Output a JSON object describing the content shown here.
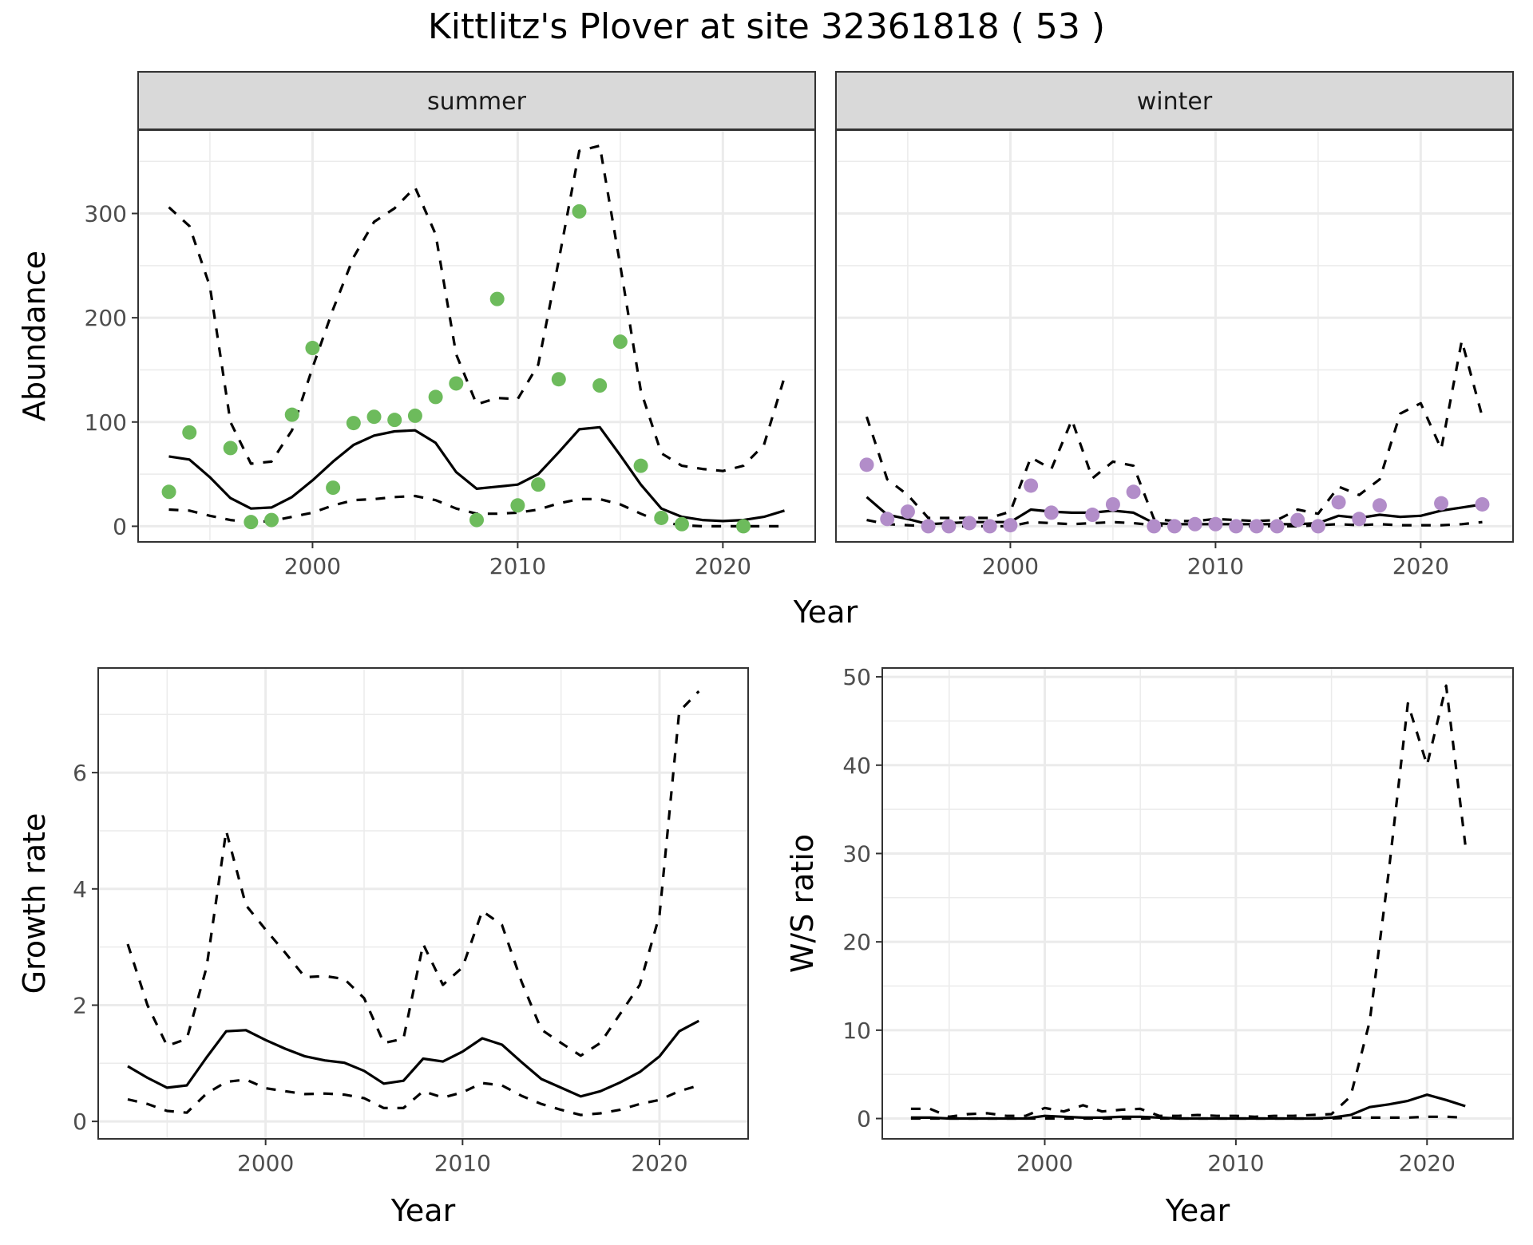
{
  "title": "Kittlitz's Plover at site 32361818 ( 53 )",
  "colors": {
    "summer_points": "#6dbb5c",
    "winter_points": "#b28dc9",
    "lines": "#000000",
    "strip_bg": "#d9d9d9",
    "grid": "#ebebeb"
  },
  "chart_data": [
    {
      "type": "scatter",
      "panel": "abundance",
      "facets": [
        "summer",
        "winter"
      ],
      "xlabel": "Year",
      "ylabel": "Abundance",
      "xlim": [
        1991.5,
        2024.5
      ],
      "ylim": [
        -15,
        380
      ],
      "xticks": [
        2000,
        2010,
        2020
      ],
      "yticks": [
        0,
        100,
        200,
        300
      ],
      "grid": true,
      "summer": {
        "points": {
          "x": [
            1993,
            1994,
            1996,
            1997,
            1998,
            1999,
            2000,
            2001,
            2002,
            2003,
            2004,
            2005,
            2006,
            2007,
            2008,
            2009,
            2010,
            2011,
            2012,
            2013,
            2014,
            2015,
            2016,
            2017,
            2018,
            2021
          ],
          "y": [
            33,
            90,
            75,
            4,
            6,
            107,
            171,
            37,
            99,
            105,
            102,
            106,
            124,
            137,
            6,
            218,
            20,
            40,
            141,
            302,
            135,
            177,
            58,
            8,
            2,
            0
          ]
        },
        "years": [
          1993,
          1994,
          1995,
          1996,
          1997,
          1998,
          1999,
          2000,
          2001,
          2002,
          2003,
          2004,
          2005,
          2006,
          2007,
          2008,
          2009,
          2010,
          2011,
          2012,
          2013,
          2014,
          2015,
          2016,
          2017,
          2018,
          2019,
          2020,
          2021,
          2022,
          2023
        ],
        "mean": [
          67,
          64,
          47,
          27,
          17,
          18,
          28,
          44,
          62,
          78,
          87,
          91,
          92,
          80,
          52,
          36,
          38,
          40,
          50,
          71,
          93,
          95,
          68,
          40,
          17,
          9,
          6,
          5,
          6,
          9,
          15
        ],
        "upper": [
          306,
          288,
          230,
          100,
          60,
          62,
          92,
          152,
          208,
          258,
          292,
          305,
          325,
          280,
          165,
          117,
          123,
          122,
          155,
          255,
          360,
          365,
          250,
          130,
          70,
          58,
          55,
          53,
          58,
          78,
          143
        ],
        "lower": [
          16,
          15,
          10,
          6,
          4,
          5,
          9,
          13,
          20,
          25,
          26,
          28,
          29,
          25,
          17,
          12,
          12,
          13,
          16,
          22,
          26,
          26,
          21,
          12,
          4,
          1,
          0,
          0,
          0,
          0,
          0
        ]
      },
      "winter": {
        "points": {
          "x": [
            1993,
            1994,
            1995,
            1996,
            1997,
            1998,
            1999,
            2000,
            2001,
            2002,
            2004,
            2005,
            2006,
            2007,
            2008,
            2009,
            2010,
            2011,
            2012,
            2013,
            2014,
            2015,
            2016,
            2017,
            2018,
            2021,
            2023
          ],
          "y": [
            59,
            7,
            14,
            0,
            0,
            3,
            0,
            1,
            39,
            13,
            11,
            21,
            33,
            0,
            0,
            2,
            2,
            0,
            0,
            0,
            6,
            0,
            23,
            7,
            20,
            22,
            21
          ]
        },
        "years": [
          1993,
          1994,
          1995,
          1996,
          1997,
          1998,
          1999,
          2000,
          2001,
          2002,
          2003,
          2004,
          2005,
          2006,
          2007,
          2008,
          2009,
          2010,
          2011,
          2012,
          2013,
          2014,
          2015,
          2016,
          2017,
          2018,
          2019,
          2020,
          2021,
          2022,
          2023
        ],
        "mean": [
          28,
          11,
          7,
          2,
          3,
          4,
          4,
          4,
          16,
          14,
          13,
          13,
          15,
          13,
          3,
          2,
          2,
          2,
          2,
          2,
          2,
          2,
          3,
          10,
          8,
          11,
          9,
          10,
          15,
          18,
          21
        ],
        "upper": [
          105,
          45,
          30,
          8,
          8,
          8,
          8,
          14,
          66,
          55,
          102,
          46,
          62,
          58,
          7,
          5,
          5,
          7,
          6,
          5,
          6,
          16,
          12,
          38,
          30,
          45,
          108,
          118,
          74,
          178,
          105
        ],
        "lower": [
          6,
          2,
          1,
          0,
          0,
          0,
          0,
          0,
          4,
          3,
          2,
          3,
          4,
          3,
          1,
          0,
          0,
          0,
          0,
          0,
          0,
          0,
          1,
          2,
          1,
          2,
          1,
          1,
          1,
          2,
          4
        ]
      }
    },
    {
      "type": "line",
      "panel": "growth",
      "xlabel": "Year",
      "ylabel": "Growth rate",
      "xlim": [
        1991.5,
        2024.5
      ],
      "ylim": [
        -0.3,
        7.8
      ],
      "xticks": [
        2000,
        2010,
        2020
      ],
      "yticks": [
        0,
        2,
        4,
        6
      ],
      "grid": true,
      "years": [
        1993,
        1994,
        1995,
        1996,
        1997,
        1998,
        1999,
        2000,
        2001,
        2002,
        2003,
        2004,
        2005,
        2006,
        2007,
        2008,
        2009,
        2010,
        2011,
        2012,
        2013,
        2014,
        2015,
        2016,
        2017,
        2018,
        2019,
        2020,
        2021,
        2022
      ],
      "mean": [
        0.95,
        0.75,
        0.58,
        0.62,
        1.1,
        1.55,
        1.57,
        1.4,
        1.25,
        1.12,
        1.05,
        1.01,
        0.87,
        0.65,
        0.7,
        1.08,
        1.03,
        1.2,
        1.43,
        1.32,
        1.02,
        0.73,
        0.58,
        0.43,
        0.52,
        0.67,
        0.85,
        1.12,
        1.55,
        1.73
      ],
      "upper": [
        3.05,
        2.0,
        1.3,
        1.42,
        2.65,
        5.0,
        3.72,
        3.3,
        2.9,
        2.48,
        2.5,
        2.45,
        2.12,
        1.35,
        1.42,
        3.05,
        2.35,
        2.65,
        3.62,
        3.38,
        2.4,
        1.58,
        1.35,
        1.13,
        1.35,
        1.85,
        2.35,
        3.55,
        7.05,
        7.4
      ],
      "lower": [
        0.38,
        0.3,
        0.18,
        0.15,
        0.48,
        0.68,
        0.72,
        0.57,
        0.52,
        0.47,
        0.48,
        0.46,
        0.4,
        0.23,
        0.23,
        0.52,
        0.41,
        0.5,
        0.66,
        0.62,
        0.44,
        0.3,
        0.2,
        0.11,
        0.14,
        0.2,
        0.3,
        0.37,
        0.52,
        0.62
      ]
    },
    {
      "type": "line",
      "panel": "ws_ratio",
      "xlabel": "Year",
      "ylabel": "W/S ratio",
      "xlim": [
        1991.5,
        2024.5
      ],
      "ylim": [
        -2.3,
        51
      ],
      "xticks": [
        2000,
        2010,
        2020
      ],
      "yticks": [
        0,
        10,
        20,
        30,
        40,
        50
      ],
      "grid": true,
      "years": [
        1993,
        1994,
        1995,
        1996,
        1997,
        1998,
        1999,
        2000,
        2001,
        2002,
        2003,
        2004,
        2005,
        2006,
        2007,
        2008,
        2009,
        2010,
        2011,
        2012,
        2013,
        2014,
        2015,
        2016,
        2017,
        2018,
        2019,
        2020,
        2021,
        2022
      ],
      "mean": [
        0.1,
        0.1,
        0.0,
        0.0,
        0.0,
        0.0,
        0.0,
        0.3,
        0.2,
        0.1,
        0.1,
        0.2,
        0.2,
        0.1,
        0.0,
        0.0,
        0.0,
        0.0,
        0.0,
        0.0,
        0.0,
        0.0,
        0.1,
        0.4,
        1.3,
        1.6,
        2.0,
        2.7,
        2.1,
        1.4
      ],
      "upper": [
        1.1,
        1.1,
        0.2,
        0.5,
        0.6,
        0.3,
        0.3,
        1.2,
        0.8,
        1.5,
        0.8,
        1.0,
        1.1,
        0.3,
        0.3,
        0.4,
        0.3,
        0.3,
        0.2,
        0.3,
        0.3,
        0.4,
        0.5,
        2.5,
        11,
        28,
        47,
        40,
        49,
        31
      ],
      "lower": [
        0.0,
        0.0,
        0.0,
        0.0,
        0.0,
        0.0,
        0.0,
        0.0,
        0.0,
        0.0,
        0.0,
        0.0,
        0.0,
        0.0,
        0.0,
        0.0,
        0.0,
        0.0,
        0.0,
        0.0,
        0.0,
        0.0,
        0.0,
        0.1,
        0.1,
        0.1,
        0.1,
        0.2,
        0.2,
        0.1
      ]
    }
  ]
}
